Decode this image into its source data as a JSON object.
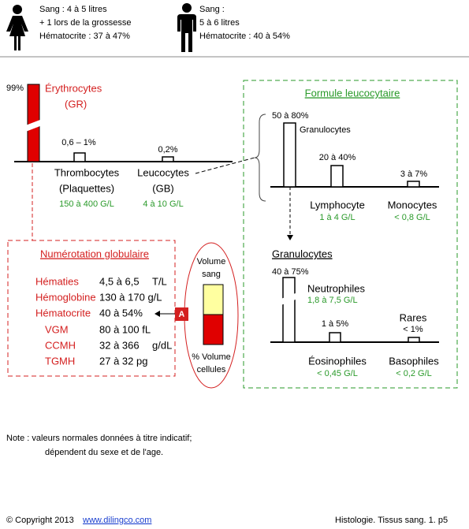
{
  "header": {
    "women": [
      "Sang : 4 à 5 litres",
      "+ 1 lors de la grossesse",
      "Hématocrite : 37 à 47%"
    ],
    "men": [
      "Sang :",
      "5 à 6 litres",
      "Hématocrite : 40 à 54%"
    ]
  },
  "blood": {
    "erythrocytes": {
      "percent": "99%",
      "name": "Érythrocytes",
      "abbr": "(GR)"
    },
    "thrombocytes": {
      "percent": "0,6 – 1%",
      "name": "Thrombocytes",
      "abbr": "(Plaquettes)",
      "count": "150 à 400 G/L"
    },
    "leucocytes": {
      "percent": "0,2%",
      "name": "Leucocytes",
      "abbr": "(GB)",
      "count": "4 à 10 G/L"
    }
  },
  "formula": {
    "title": "Formule leucocytaire",
    "granulocytes": {
      "percent": "50 à 80%",
      "name": "Granulocytes"
    },
    "lymphocyte": {
      "percent": "20 à 40%",
      "name": "Lymphocyte",
      "count": "1 à 4 G/L"
    },
    "monocytes": {
      "percent": "3 à 7%",
      "name": "Monocytes",
      "count": "< 0,8 G/L"
    },
    "sub_title": "Granulocytes",
    "neutrophiles": {
      "percent": "40 à 75%",
      "name": "Neutrophiles",
      "count": "1,8 à 7,5 G/L"
    },
    "eosinophiles": {
      "percent": "1 à 5%",
      "name": "Éosinophiles",
      "count": "< 0,45 G/L"
    },
    "basophiles": {
      "percent_a": "Rares",
      "percent_b": "< 1%",
      "name": "Basophiles",
      "count": "< 0,2 G/L"
    }
  },
  "numeration": {
    "title": "Numérotation globulaire",
    "rows": [
      [
        "Hématies",
        "4,5 à 6,5",
        "T/L"
      ],
      [
        "Hémoglobine",
        "130 à 170 g/L"
      ],
      [
        "Hématocrite",
        "40 à  54%"
      ],
      [
        "VGM",
        "80 à 100 fL"
      ],
      [
        "CCMH",
        "32 à 366",
        "g/dL"
      ],
      [
        "TGMH",
        "27 à 32 pg"
      ]
    ],
    "marker": "A"
  },
  "tube": {
    "top": [
      "Volume",
      "sang"
    ],
    "bottom": [
      "% Volume",
      "cellules"
    ]
  },
  "note": [
    "Note : valeurs normales données à titre indicatif;",
    "dépendent du sexe et de l'age."
  ],
  "footer": {
    "copyright": "© Copyright 2013",
    "link": "www.dilingco.com",
    "page": "Histologie. Tissus sang. 1.  p5"
  }
}
